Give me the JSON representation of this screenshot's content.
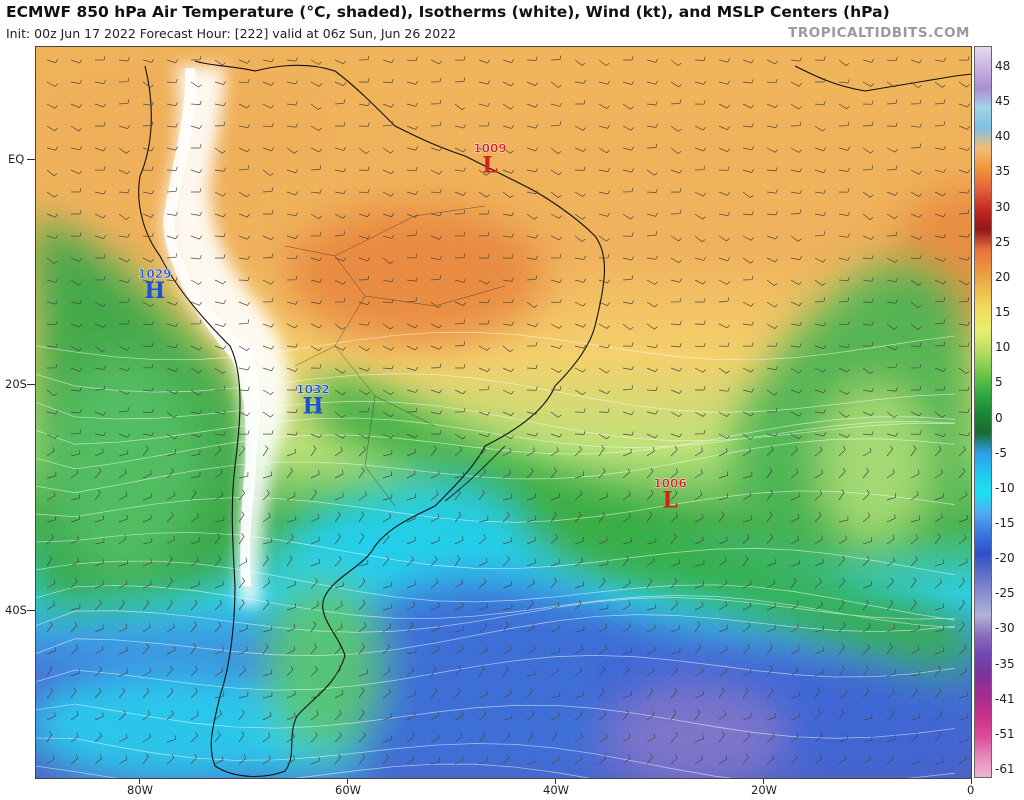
{
  "header": {
    "title": "ECMWF 850 hPa Air Temperature (°C, shaded), Isotherms (white), Wind (kt), and MSLP Centers (hPa)",
    "subtitle": "Init: 00z Jun 17 2022   Forecast Hour: [222]   valid at 06z Sun, Jun 26 2022",
    "brand": "TROPICALTIDBITS.COM"
  },
  "axes": {
    "lat_labels": [
      "EQ",
      "20S",
      "40S"
    ],
    "lon_labels": [
      "80W",
      "60W",
      "40W",
      "20W",
      "0"
    ]
  },
  "pressure_centers": [
    {
      "type": "H",
      "value": "1029",
      "lon": -78.5,
      "lat": -12.5,
      "color": "#1f4fd8"
    },
    {
      "type": "H",
      "value": "1032",
      "lon": -63.3,
      "lat": -23.5,
      "color": "#1f4fd8"
    },
    {
      "type": "L",
      "value": "1009",
      "lon": -46.3,
      "lat": -0.5,
      "color": "#d32222"
    },
    {
      "type": "L",
      "value": "1006",
      "lon": -29.0,
      "lat": -32.5,
      "color": "#d32222"
    }
  ],
  "colorbar": {
    "labels": [
      "48",
      "45",
      "40",
      "35",
      "30",
      "25",
      "20",
      "15",
      "10",
      "5",
      "0",
      "-5",
      "-10",
      "-15",
      "-20",
      "-25",
      "-30",
      "-35",
      "-41",
      "-51",
      "-61"
    ],
    "colors": [
      "#e4dcf0",
      "#cab3e2",
      "#ad8dd0",
      "#a4d3ea",
      "#7ec0e0",
      "#f4bd78",
      "#f09438",
      "#e3623e",
      "#c52a1f",
      "#8f1717",
      "#e8733c",
      "#ea9640",
      "#eebb4d",
      "#f2dd5e",
      "#e7ef73",
      "#b6dd62",
      "#77c84b",
      "#38ad43",
      "#1a8a38",
      "#1a6a30",
      "#2f9de8",
      "#22c6ef",
      "#1fe0f4",
      "#50aaf0",
      "#3977e0",
      "#2f4fc8",
      "#6070c8",
      "#8a90d0",
      "#b0b4d8",
      "#8a6cc0",
      "#7048b0",
      "#80309a",
      "#a72c90",
      "#c8328a",
      "#dd4a98",
      "#e58abb",
      "#eeb6d2"
    ]
  },
  "colors": {
    "frame": "#444444",
    "coast": "#111111",
    "wind": "#4a4a4a",
    "isotherm": "#ffffff"
  }
}
